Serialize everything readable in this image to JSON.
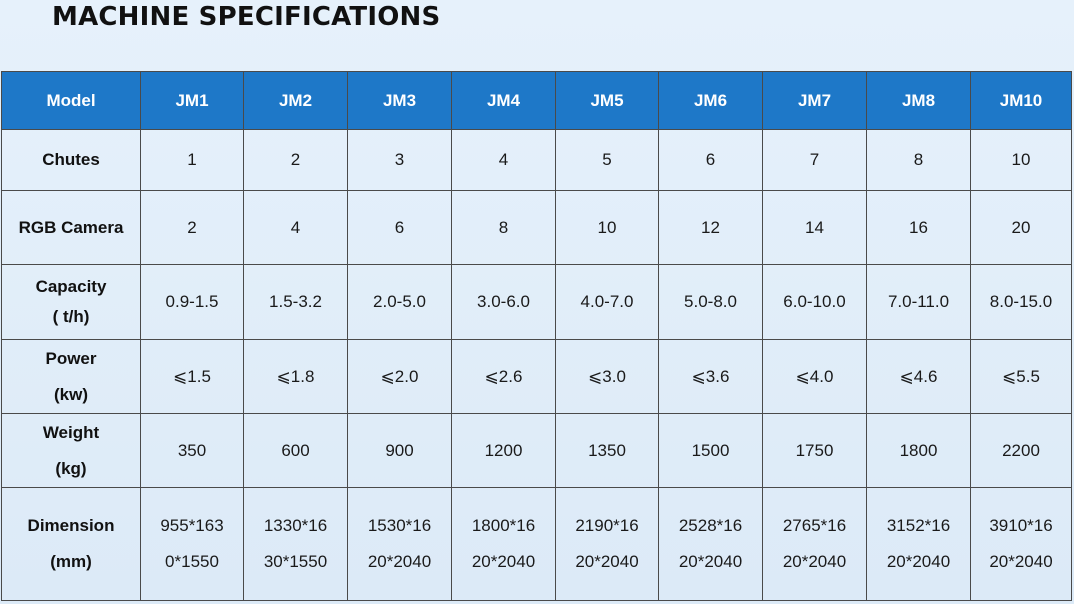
{
  "title": "MACHINE SPECIFICATIONS",
  "colors": {
    "header_bg": "#1e78c8",
    "header_text": "#ffffff",
    "page_bg": "#e2eef9",
    "border": "#4a4a4a"
  },
  "table": {
    "header_label": "Model",
    "models": [
      "JM1",
      "JM2",
      "JM3",
      "JM4",
      "JM5",
      "JM6",
      "JM7",
      "JM8",
      "JM10"
    ],
    "rows": [
      {
        "key": "chutes",
        "label": "Chutes",
        "values": [
          "1",
          "2",
          "3",
          "4",
          "5",
          "6",
          "7",
          "8",
          "10"
        ]
      },
      {
        "key": "camera",
        "label": "RGB Camera",
        "values": [
          "2",
          "4",
          "6",
          "8",
          "10",
          "12",
          "14",
          "16",
          "20"
        ]
      },
      {
        "key": "capacity",
        "label": "Capacity\n( t/h)",
        "values": [
          "0.9-1.5",
          "1.5-3.2",
          "2.0-5.0",
          "3.0-6.0",
          "4.0-7.0",
          "5.0-8.0",
          "6.0-10.0",
          "7.0-11.0",
          "8.0-15.0"
        ]
      },
      {
        "key": "power",
        "label": "Power\n(kw)",
        "values": [
          "⩽1.5",
          "⩽1.8",
          "⩽2.0",
          "⩽2.6",
          "⩽3.0",
          "⩽3.6",
          "⩽4.0",
          "⩽4.6",
          "⩽5.5"
        ]
      },
      {
        "key": "weight",
        "label": "Weight\n(kg)",
        "values": [
          "350",
          "600",
          "900",
          "1200",
          "1350",
          "1500",
          "1750",
          "1800",
          "2200"
        ]
      },
      {
        "key": "dimension",
        "label": "Dimension\n(mm)",
        "values": [
          "955*163\n0*1550",
          "1330*16\n30*1550",
          "1530*16\n20*2040",
          "1800*16\n20*2040",
          "2190*16\n20*2040",
          "2528*16\n20*2040",
          "2765*16\n20*2040",
          "3152*16\n20*2040",
          "3910*16\n20*2040"
        ]
      }
    ]
  }
}
